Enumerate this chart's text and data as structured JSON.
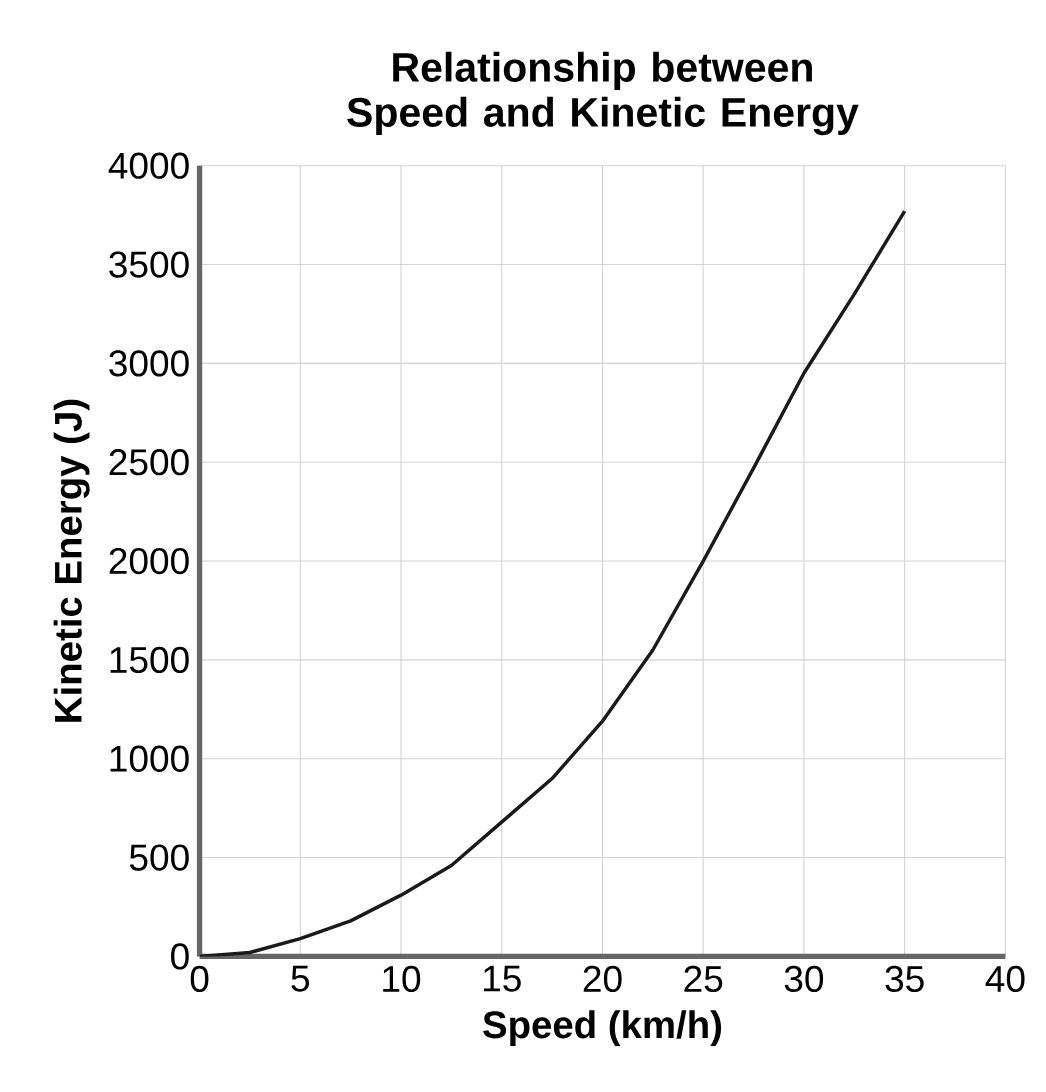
{
  "chart_data": {
    "type": "line",
    "title": "Relationship between Speed and Kinetic Energy",
    "xlabel": "Speed (km/h)",
    "ylabel": "Kinetic Energy (J)",
    "x": [
      0,
      2.5,
      5,
      7.5,
      10,
      12.5,
      15,
      17.5,
      20,
      22.5,
      25,
      27.5,
      30,
      32.5,
      35
    ],
    "values": [
      0,
      20,
      90,
      180,
      310,
      460,
      680,
      900,
      1190,
      1550,
      2000,
      2470,
      2950,
      3350,
      3770
    ],
    "color": "#1a1a1a",
    "xlim": [
      0,
      40
    ],
    "ylim": [
      0,
      4000
    ],
    "xticks": [
      0,
      5,
      10,
      15,
      20,
      25,
      30,
      35,
      40
    ],
    "yticks": [
      0,
      500,
      1000,
      1500,
      2000,
      2500,
      3000,
      3500,
      4000
    ],
    "grid": true,
    "marker": "none",
    "line_style": "solid"
  }
}
